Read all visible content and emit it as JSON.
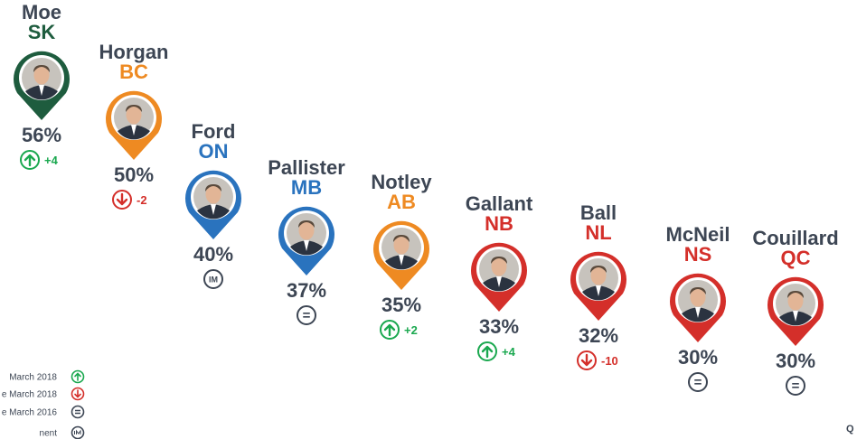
{
  "chart_data": {
    "type": "scatter",
    "title": "",
    "xlabel": "",
    "ylabel": "",
    "unit": "%",
    "ylim": [
      28,
      58
    ],
    "points": [
      {
        "name": "Moe",
        "province": "SK",
        "value": 56,
        "value_label": "56%",
        "change": "up",
        "change_label": "+4",
        "color": "#1e5c3e"
      },
      {
        "name": "Horgan",
        "province": "BC",
        "value": 50,
        "value_label": "50%",
        "change": "down",
        "change_label": "-2",
        "color": "#ee8a22"
      },
      {
        "name": "Ford",
        "province": "ON",
        "value": 40,
        "value_label": "40%",
        "change": "im",
        "change_label": "IM",
        "color": "#2a73be"
      },
      {
        "name": "Pallister",
        "province": "MB",
        "value": 37,
        "value_label": "37%",
        "change": "same",
        "change_label": "=",
        "color": "#2a73be"
      },
      {
        "name": "Notley",
        "province": "AB",
        "value": 35,
        "value_label": "35%",
        "change": "up",
        "change_label": "+2",
        "color": "#ee8a22"
      },
      {
        "name": "Gallant",
        "province": "NB",
        "value": 33,
        "value_label": "33%",
        "change": "up",
        "change_label": "+4",
        "color": "#d42f2a"
      },
      {
        "name": "Ball",
        "province": "NL",
        "value": 32,
        "value_label": "32%",
        "change": "down",
        "change_label": "-10",
        "color": "#d42f2a"
      },
      {
        "name": "McNeil",
        "province": "NS",
        "value": 30,
        "value_label": "30%",
        "change": "same",
        "change_label": "=",
        "color": "#d42f2a"
      },
      {
        "name": "Couillard",
        "province": "QC",
        "value": 30,
        "value_label": "30%",
        "change": "same",
        "change_label": "=",
        "color": "#d42f2a"
      }
    ],
    "legend": {
      "placement": "bottom-left",
      "items": [
        {
          "text": "March 2018",
          "kind": "up"
        },
        {
          "text": "e March 2018",
          "kind": "down"
        },
        {
          "text": "e March 2016",
          "kind": "same"
        },
        {
          "text": "nent",
          "kind": "im"
        }
      ]
    },
    "colors": {
      "up": "#1aa84f",
      "down": "#d42f2a",
      "neutral": "#3d4654"
    },
    "corner_text": "Q"
  }
}
